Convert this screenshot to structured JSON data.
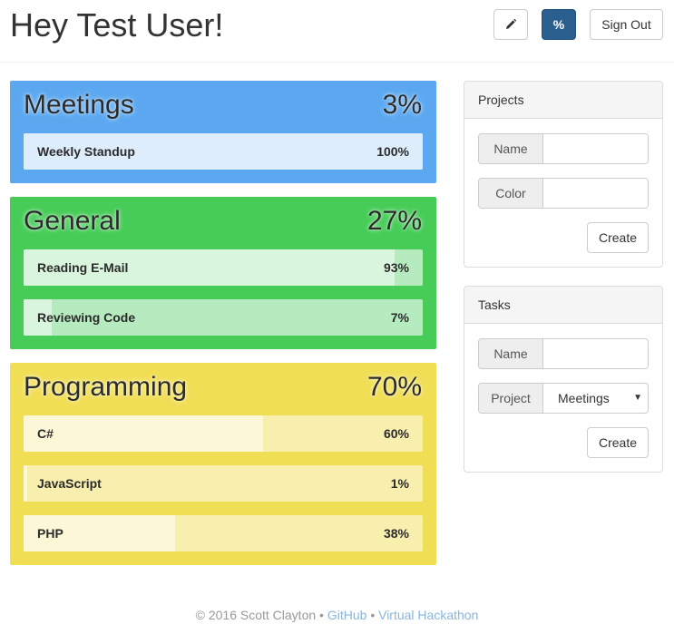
{
  "header": {
    "greeting": "Hey Test User!",
    "edit_icon": "pencil-icon",
    "percent_label": "%",
    "signout_label": "Sign Out"
  },
  "categories": [
    {
      "name": "Meetings",
      "percent": "3%",
      "color": "#5ba8f0",
      "tasks": [
        {
          "name": "Weekly Standup",
          "percent": "100%",
          "fill": 1.0
        }
      ]
    },
    {
      "name": "General",
      "percent": "27%",
      "color": "#46cc57",
      "tasks": [
        {
          "name": "Reading E-Mail",
          "percent": "93%",
          "fill": 0.93
        },
        {
          "name": "Reviewing Code",
          "percent": "7%",
          "fill": 0.07
        }
      ]
    },
    {
      "name": "Programming",
      "percent": "70%",
      "color": "#f0de55",
      "tasks": [
        {
          "name": "C#",
          "percent": "60%",
          "fill": 0.6
        },
        {
          "name": "JavaScript",
          "percent": "1%",
          "fill": 0.01
        },
        {
          "name": "PHP",
          "percent": "38%",
          "fill": 0.38
        }
      ]
    }
  ],
  "projects_panel": {
    "title": "Projects",
    "name_label": "Name",
    "name_value": "",
    "color_label": "Color",
    "color_value": "",
    "create_label": "Create"
  },
  "tasks_panel": {
    "title": "Tasks",
    "name_label": "Name",
    "name_value": "",
    "project_label": "Project",
    "project_selected": "Meetings",
    "create_label": "Create"
  },
  "footer": {
    "copyright": "© 2016 Scott Clayton",
    "separator": "•",
    "github_label": "GitHub",
    "hackathon_label": "Virtual Hackathon"
  }
}
